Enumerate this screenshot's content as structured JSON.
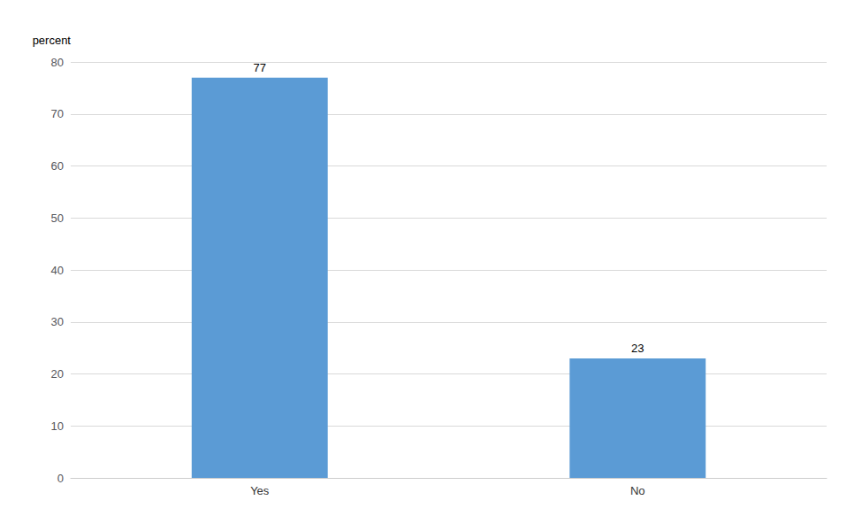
{
  "chart_data": {
    "type": "bar",
    "ylabel": "percent",
    "categories": [
      "Yes",
      "No"
    ],
    "values": [
      77,
      23
    ],
    "color": "#5b9bd5",
    "ylim": [
      0,
      80
    ],
    "yticks": [
      0,
      10,
      20,
      30,
      40,
      50,
      60,
      70,
      80
    ],
    "grid": true,
    "data_labels": true
  }
}
